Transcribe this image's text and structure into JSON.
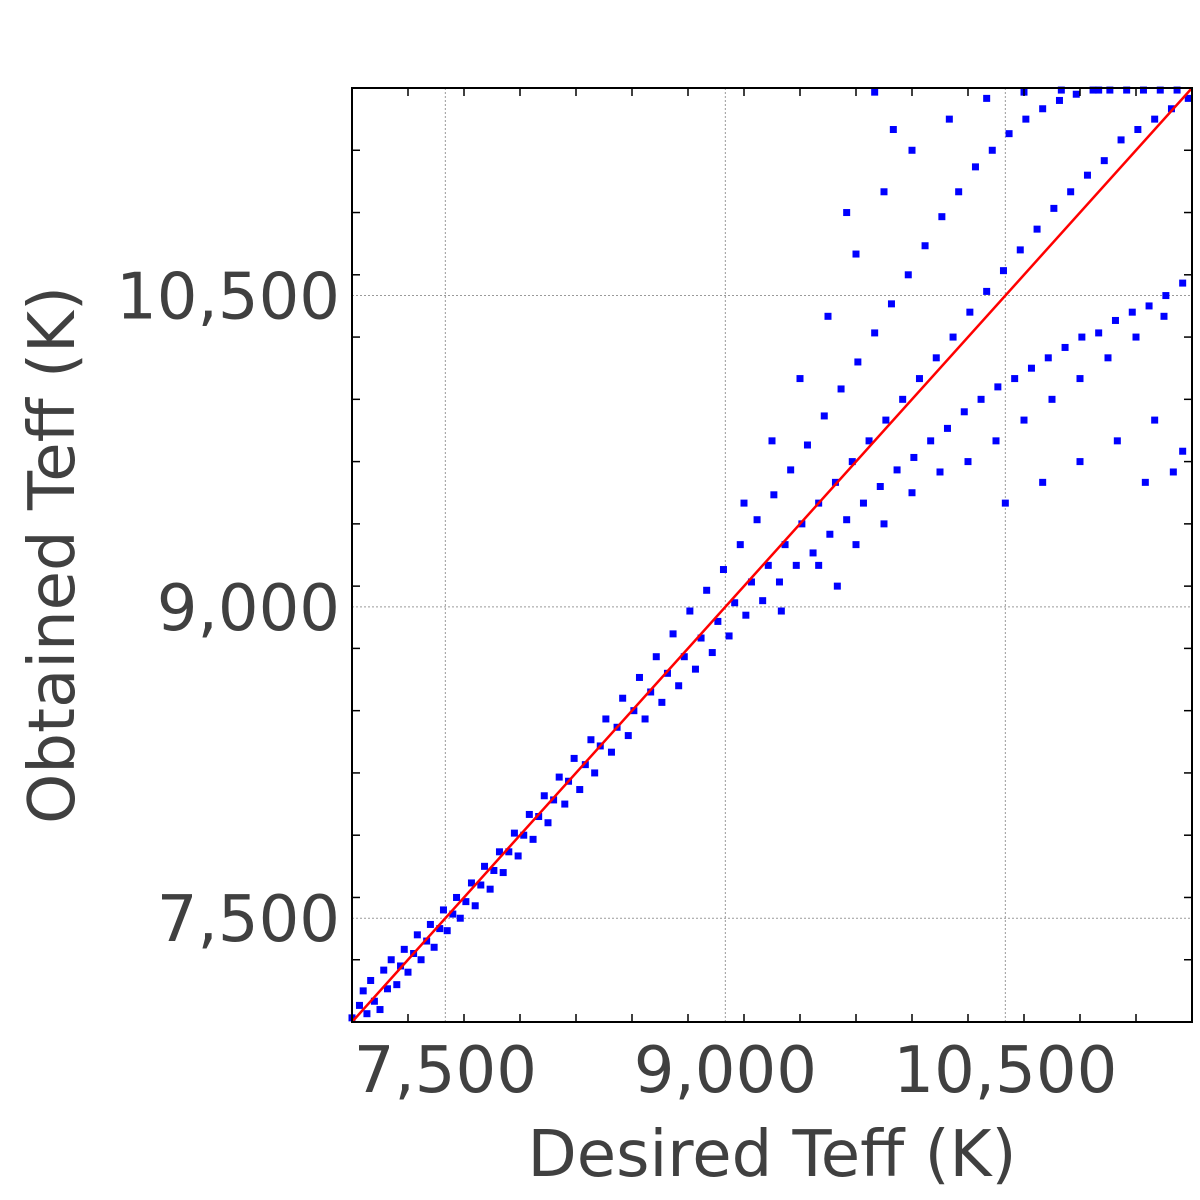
{
  "chart_data": {
    "type": "scatter",
    "title": "",
    "xlabel": "Desired Teff (K)",
    "ylabel": "Obtained Teff (K)",
    "xlim": [
      7000,
      11500
    ],
    "ylim": [
      7000,
      11500
    ],
    "xticks": [
      7500,
      9000,
      10500
    ],
    "yticks": [
      7500,
      9000,
      10500
    ],
    "xtick_labels": [
      "7,500",
      "9,000",
      "10,500"
    ],
    "ytick_labels": [
      "7,500",
      "9,000",
      "10,500"
    ],
    "grid": true,
    "point_color": "#0000ff",
    "reference_line": {
      "x": [
        7000,
        11500
      ],
      "y": [
        7000,
        11500
      ],
      "color": "#ff0000"
    },
    "series": [
      {
        "points": [
          [
            7000,
            7020
          ],
          [
            7020,
            6990
          ],
          [
            7040,
            7080
          ],
          [
            7060,
            7150
          ],
          [
            7080,
            7040
          ],
          [
            7100,
            7200
          ],
          [
            7120,
            7100
          ],
          [
            7150,
            7060
          ],
          [
            7170,
            7250
          ],
          [
            7190,
            7160
          ],
          [
            7210,
            7300
          ],
          [
            7240,
            7180
          ],
          [
            7260,
            7270
          ],
          [
            7280,
            7350
          ],
          [
            7300,
            7240
          ],
          [
            7330,
            7330
          ],
          [
            7350,
            7420
          ],
          [
            7370,
            7300
          ],
          [
            7400,
            7390
          ],
          [
            7420,
            7470
          ],
          [
            7440,
            7360
          ],
          [
            7470,
            7450
          ],
          [
            7490,
            7540
          ],
          [
            7510,
            7440
          ],
          [
            7540,
            7520
          ],
          [
            7560,
            7600
          ],
          [
            7580,
            7500
          ],
          [
            7610,
            7580
          ],
          [
            7640,
            7670
          ],
          [
            7660,
            7560
          ],
          [
            7690,
            7660
          ],
          [
            7710,
            7750
          ],
          [
            7740,
            7640
          ],
          [
            7760,
            7730
          ],
          [
            7790,
            7820
          ],
          [
            7810,
            7720
          ],
          [
            7840,
            7820
          ],
          [
            7870,
            7910
          ],
          [
            7890,
            7800
          ],
          [
            7920,
            7900
          ],
          [
            7950,
            8000
          ],
          [
            7970,
            7880
          ],
          [
            8000,
            7990
          ],
          [
            8030,
            8090
          ],
          [
            8050,
            7960
          ],
          [
            8080,
            8070
          ],
          [
            8110,
            8180
          ],
          [
            8140,
            8050
          ],
          [
            8160,
            8160
          ],
          [
            8190,
            8270
          ],
          [
            8220,
            8120
          ],
          [
            8250,
            8240
          ],
          [
            8280,
            8360
          ],
          [
            8300,
            8200
          ],
          [
            8330,
            8330
          ],
          [
            8360,
            8460
          ],
          [
            8390,
            8300
          ],
          [
            8420,
            8420
          ],
          [
            8450,
            8560
          ],
          [
            8480,
            8380
          ],
          [
            8510,
            8500
          ],
          [
            8540,
            8660
          ],
          [
            8570,
            8460
          ],
          [
            8600,
            8590
          ],
          [
            8630,
            8760
          ],
          [
            8660,
            8540
          ],
          [
            8690,
            8680
          ],
          [
            8720,
            8870
          ],
          [
            8750,
            8620
          ],
          [
            8780,
            8760
          ],
          [
            8810,
            8980
          ],
          [
            8840,
            8700
          ],
          [
            8870,
            8850
          ],
          [
            8900,
            9080
          ],
          [
            8930,
            8780
          ],
          [
            8960,
            8930
          ],
          [
            8990,
            9180
          ],
          [
            9020,
            8860
          ],
          [
            9050,
            9020
          ],
          [
            9080,
            9300
          ],
          [
            9110,
            8960
          ],
          [
            9140,
            9120
          ],
          [
            9170,
            9420
          ],
          [
            9200,
            9030
          ],
          [
            9230,
            9200
          ],
          [
            9260,
            9540
          ],
          [
            9290,
            9120
          ],
          [
            9320,
            9300
          ],
          [
            9350,
            9660
          ],
          [
            9380,
            9200
          ],
          [
            9410,
            9400
          ],
          [
            9440,
            9780
          ],
          [
            9470,
            9260
          ],
          [
            9500,
            9500
          ],
          [
            9530,
            9920
          ],
          [
            9560,
            9350
          ],
          [
            9590,
            9600
          ],
          [
            9620,
            10050
          ],
          [
            9650,
            9420
          ],
          [
            9680,
            9700
          ],
          [
            9710,
            10180
          ],
          [
            9740,
            9500
          ],
          [
            9770,
            9800
          ],
          [
            9800,
            10320
          ],
          [
            9830,
            9580
          ],
          [
            9860,
            9900
          ],
          [
            9890,
            10460
          ],
          [
            9920,
            9660
          ],
          [
            9950,
            10000
          ],
          [
            9980,
            10600
          ],
          [
            10010,
            9720
          ],
          [
            10040,
            10100
          ],
          [
            10070,
            10740
          ],
          [
            10100,
            9800
          ],
          [
            10130,
            10200
          ],
          [
            10160,
            10880
          ],
          [
            10190,
            9860
          ],
          [
            10220,
            10300
          ],
          [
            10250,
            11000
          ],
          [
            10280,
            9940
          ],
          [
            10310,
            10420
          ],
          [
            10340,
            11120
          ],
          [
            10370,
            10000
          ],
          [
            10400,
            10520
          ],
          [
            10430,
            11200
          ],
          [
            10460,
            10060
          ],
          [
            10490,
            10620
          ],
          [
            10520,
            11280
          ],
          [
            10550,
            10100
          ],
          [
            10580,
            10720
          ],
          [
            10610,
            11350
          ],
          [
            10640,
            10150
          ],
          [
            10670,
            10820
          ],
          [
            10700,
            11400
          ],
          [
            10730,
            10200
          ],
          [
            10760,
            10920
          ],
          [
            10790,
            11440
          ],
          [
            10820,
            10250
          ],
          [
            10850,
            11000
          ],
          [
            10880,
            11470
          ],
          [
            10910,
            10300
          ],
          [
            10940,
            11080
          ],
          [
            10970,
            11490
          ],
          [
            11000,
            10320
          ],
          [
            11030,
            11150
          ],
          [
            11060,
            11490
          ],
          [
            11090,
            10380
          ],
          [
            11120,
            11250
          ],
          [
            11150,
            11490
          ],
          [
            11180,
            10420
          ],
          [
            11210,
            11300
          ],
          [
            11240,
            11490
          ],
          [
            11270,
            10450
          ],
          [
            11300,
            11350
          ],
          [
            11330,
            11490
          ],
          [
            11360,
            10500
          ],
          [
            11390,
            11400
          ],
          [
            11420,
            11490
          ],
          [
            11450,
            10560
          ],
          [
            11480,
            11450
          ],
          [
            9300,
            8980
          ],
          [
            9500,
            9200
          ],
          [
            9600,
            9100
          ],
          [
            9700,
            9300
          ],
          [
            9850,
            9400
          ],
          [
            10000,
            9550
          ],
          [
            10150,
            9650
          ],
          [
            10300,
            9700
          ],
          [
            10450,
            9800
          ],
          [
            10600,
            9900
          ],
          [
            10750,
            10000
          ],
          [
            10900,
            10100
          ],
          [
            11050,
            10200
          ],
          [
            11200,
            10300
          ],
          [
            11350,
            10400
          ],
          [
            10500,
            9500
          ],
          [
            10700,
            9600
          ],
          [
            10900,
            9700
          ],
          [
            11100,
            9800
          ],
          [
            11300,
            9900
          ],
          [
            11450,
            9750
          ],
          [
            11400,
            9650
          ],
          [
            11250,
            9600
          ],
          [
            9100,
            9500
          ],
          [
            9250,
            9800
          ],
          [
            9400,
            10100
          ],
          [
            9550,
            10400
          ],
          [
            9700,
            10700
          ],
          [
            9850,
            11000
          ],
          [
            10000,
            11200
          ],
          [
            10200,
            11350
          ],
          [
            10400,
            11450
          ],
          [
            10600,
            11480
          ],
          [
            10800,
            11490
          ],
          [
            11000,
            11490
          ],
          [
            9800,
            11480
          ],
          [
            9900,
            11300
          ],
          [
            9650,
            10900
          ]
        ]
      }
    ]
  }
}
